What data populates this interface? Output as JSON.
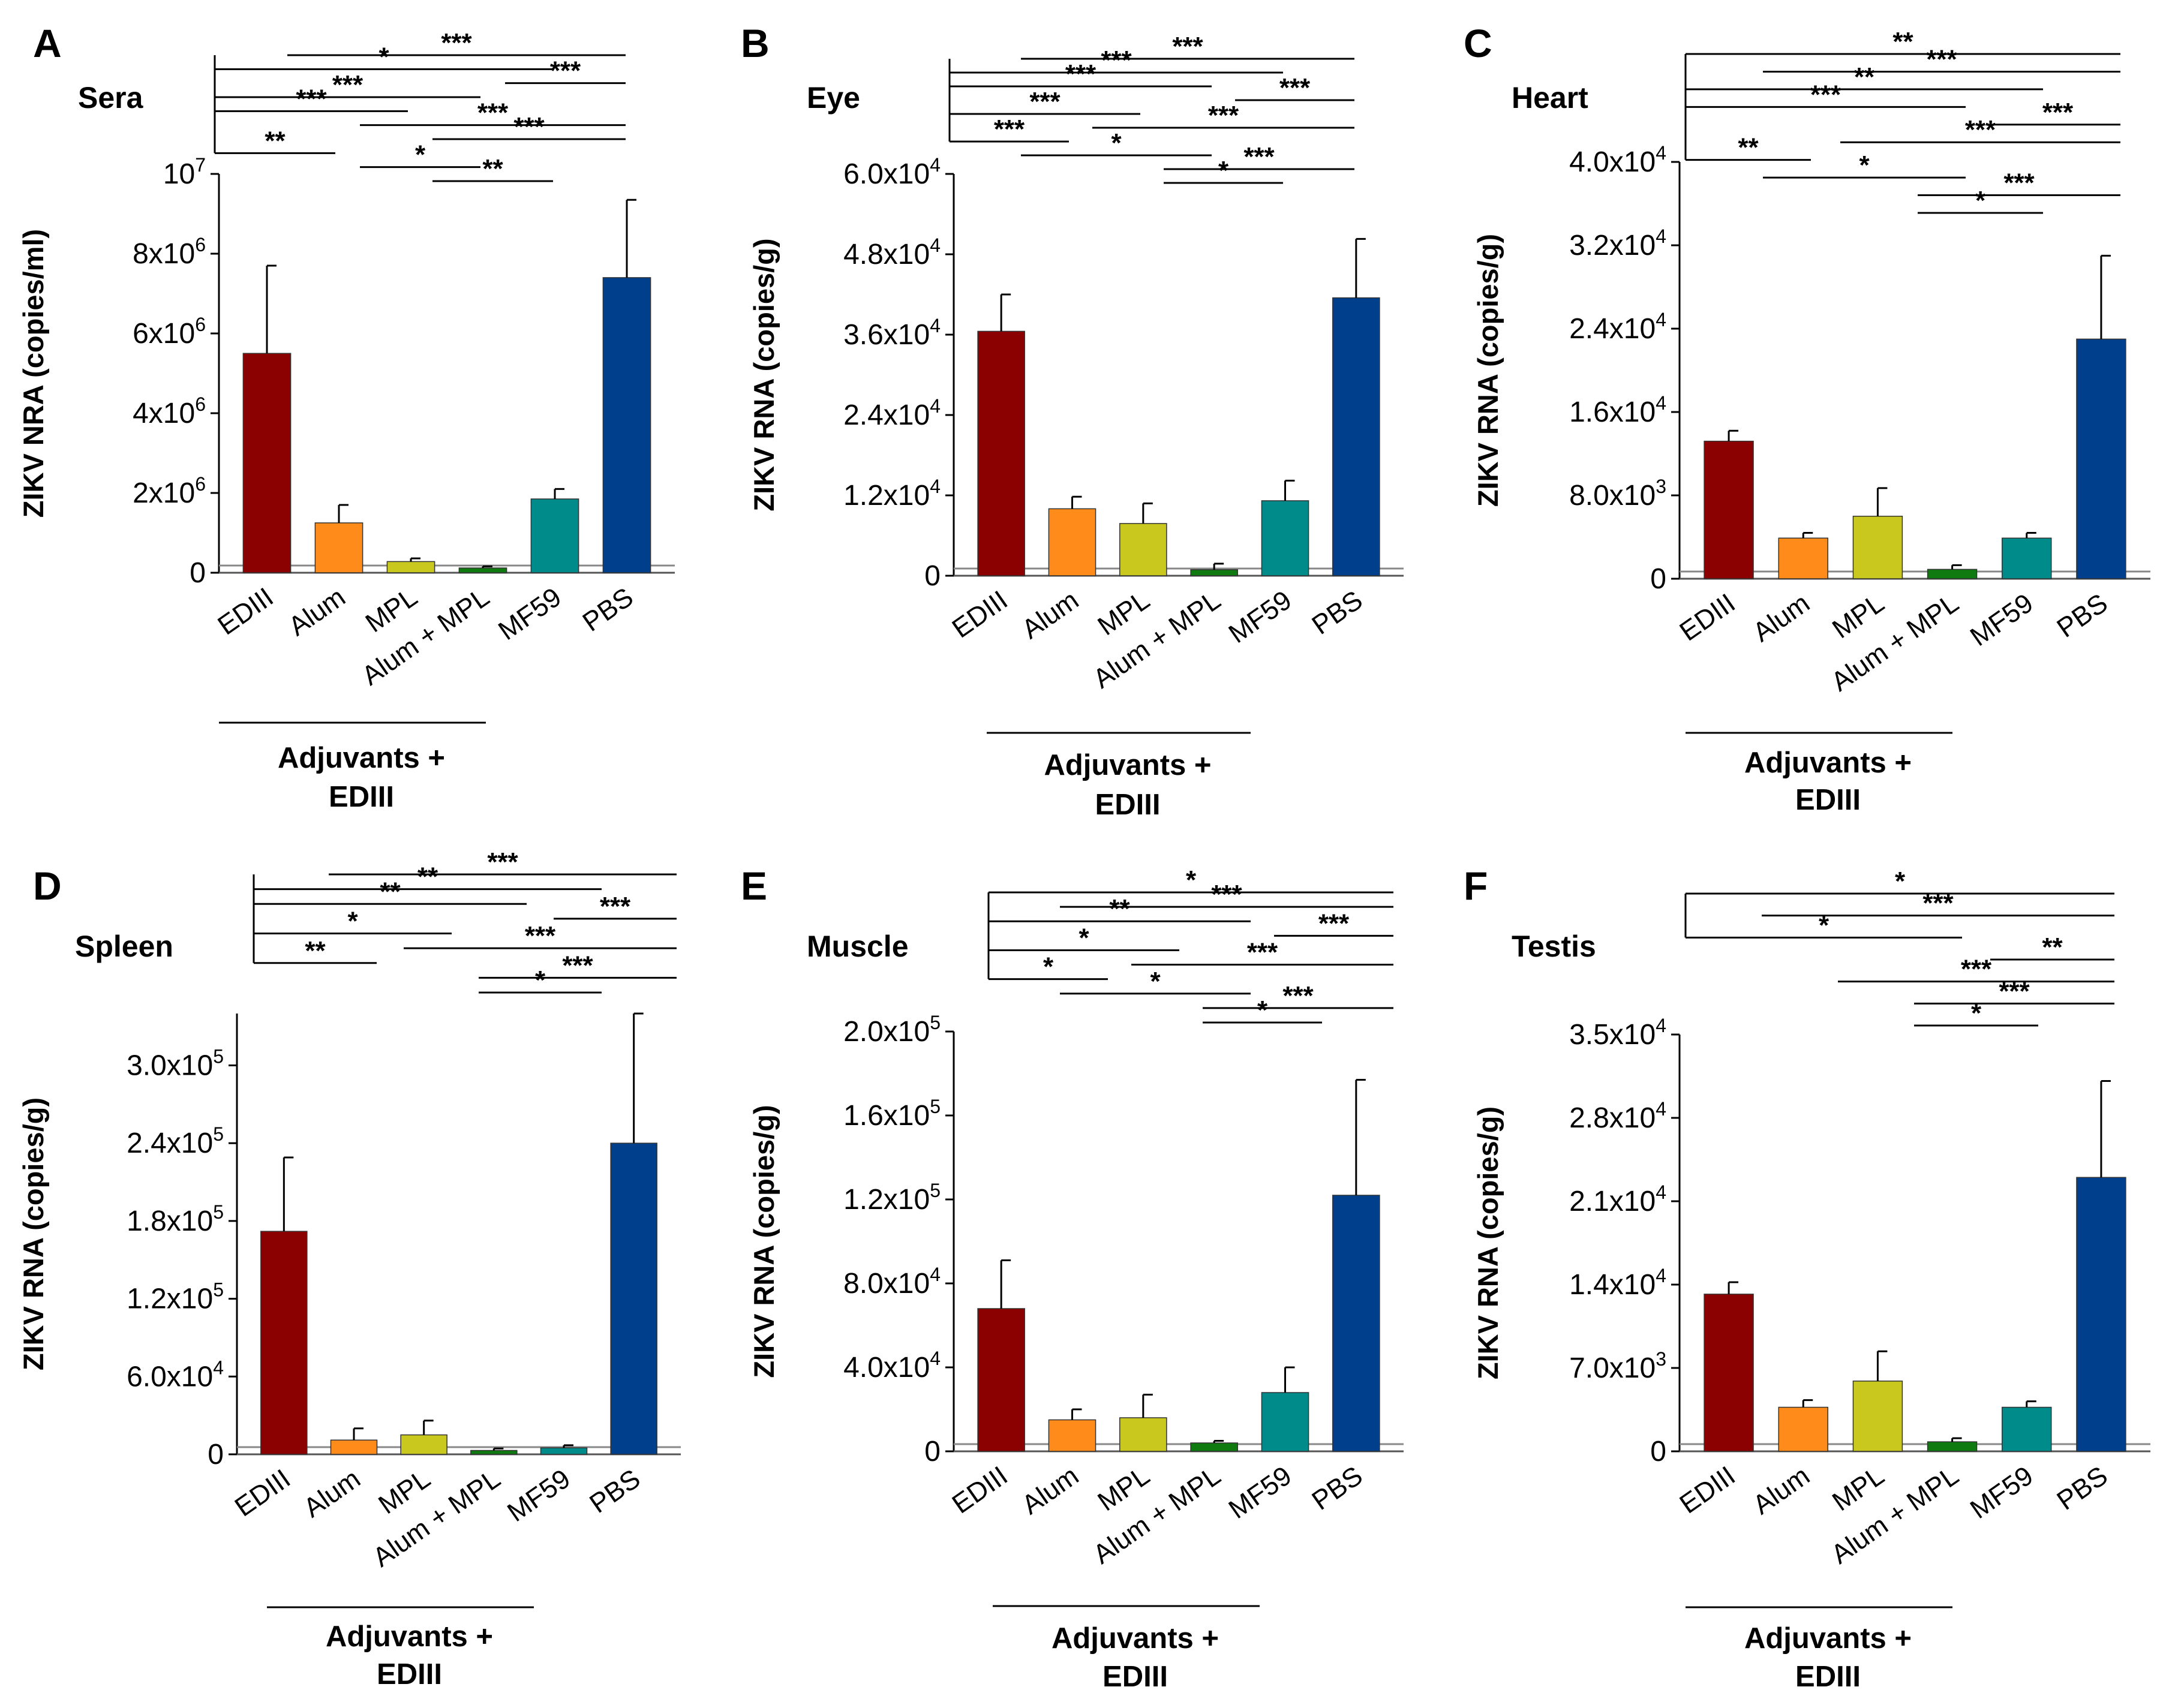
{
  "figure": {
    "colors": {
      "EDIII": "#8b0000",
      "Alum": "#ff8c1a",
      "MPL": "#c8c81e",
      "Alum + MPL": "#0f7a0f",
      "MF59": "#008b8b",
      "PBS": "#003f8c"
    }
  },
  "chart_data": [
    {
      "type": "bar",
      "panel": "A",
      "title": "Sera",
      "ylabel": "ZIKV NRA (copies/ml)",
      "categories": [
        "EDIII",
        "Alum",
        "MPL",
        "Alum + MPL",
        "MF59",
        "PBS"
      ],
      "values": [
        5500000,
        1250000,
        280000,
        120000,
        1850000,
        7400000
      ],
      "errors": [
        2200000,
        450000,
        80000,
        40000,
        250000,
        1950000
      ],
      "ylim": [
        0,
        10000000
      ],
      "ticks": [
        0,
        2000000,
        4000000,
        6000000,
        8000000,
        10000000
      ],
      "tick_labels": [
        {
          "base": "0",
          "exp": ""
        },
        {
          "base": "2x10",
          "exp": "6"
        },
        {
          "base": "4x10",
          "exp": "6"
        },
        {
          "base": "6x10",
          "exp": "6"
        },
        {
          "base": "8x10",
          "exp": "6"
        },
        {
          "base": "10",
          "exp": "7"
        }
      ],
      "group_label": [
        "Adjuvants +",
        "EDIII"
      ],
      "significance": [
        {
          "from": 1,
          "to": 5,
          "label": "***"
        },
        {
          "from": 0,
          "to": 4,
          "label": "*"
        },
        {
          "from": 4,
          "to": 5,
          "label": "***"
        },
        {
          "from": 0,
          "to": 3,
          "label": "***"
        },
        {
          "from": 0,
          "to": 2,
          "label": "***"
        },
        {
          "from": 2,
          "to": 5,
          "label": "***"
        },
        {
          "from": 3,
          "to": 5,
          "label": "***"
        },
        {
          "from": 0,
          "to": 1,
          "label": "**"
        },
        {
          "from": 2,
          "to": 3,
          "label": "*"
        },
        {
          "from": 3,
          "to": 4,
          "label": "**"
        }
      ]
    },
    {
      "type": "bar",
      "panel": "B",
      "title": "Eye",
      "ylabel": "ZIKV RNA (copies/g)",
      "categories": [
        "EDIII",
        "Alum",
        "MPL",
        "Alum + MPL",
        "MF59",
        "PBS"
      ],
      "values": [
        36500,
        10000,
        7800,
        900,
        11200,
        41500
      ],
      "errors": [
        5500,
        1800,
        3000,
        900,
        3000,
        8800
      ],
      "ylim": [
        0,
        60000
      ],
      "ticks": [
        0,
        12000,
        24000,
        36000,
        48000,
        60000
      ],
      "tick_labels": [
        {
          "base": "0",
          "exp": ""
        },
        {
          "base": "1.2x10",
          "exp": "4"
        },
        {
          "base": "2.4x10",
          "exp": "4"
        },
        {
          "base": "3.6x10",
          "exp": "4"
        },
        {
          "base": "4.8x10",
          "exp": "4"
        },
        {
          "base": "6.0x10",
          "exp": "4"
        }
      ],
      "group_label": [
        "Adjuvants +",
        "EDIII"
      ],
      "significance": [
        {
          "from": 1,
          "to": 5,
          "label": "***"
        },
        {
          "from": 0,
          "to": 4,
          "label": "***"
        },
        {
          "from": 0,
          "to": 3,
          "label": "***"
        },
        {
          "from": 4,
          "to": 5,
          "label": "***"
        },
        {
          "from": 0,
          "to": 2,
          "label": "***"
        },
        {
          "from": 2,
          "to": 5,
          "label": "***"
        },
        {
          "from": 0,
          "to": 1,
          "label": "***"
        },
        {
          "from": 1,
          "to": 3,
          "label": "*"
        },
        {
          "from": 3,
          "to": 5,
          "label": "***"
        },
        {
          "from": 3,
          "to": 4,
          "label": "*"
        }
      ]
    },
    {
      "type": "bar",
      "panel": "C",
      "title": "Heart",
      "ylabel": "ZIKV RNA (copies/g)",
      "categories": [
        "EDIII",
        "Alum",
        "MPL",
        "Alum + MPL",
        "MF59",
        "PBS"
      ],
      "values": [
        13200,
        3900,
        6000,
        900,
        3900,
        23000
      ],
      "errors": [
        1000,
        500,
        2700,
        400,
        500,
        8000
      ],
      "ylim": [
        0,
        40000
      ],
      "ticks": [
        0,
        8000,
        16000,
        24000,
        32000,
        40000
      ],
      "tick_labels": [
        {
          "base": "0",
          "exp": ""
        },
        {
          "base": "8.0x10",
          "exp": "3"
        },
        {
          "base": "1.6x10",
          "exp": "4"
        },
        {
          "base": "2.4x10",
          "exp": "4"
        },
        {
          "base": "3.2x10",
          "exp": "4"
        },
        {
          "base": "4.0x10",
          "exp": "4"
        }
      ],
      "group_label": [
        "Adjuvants +",
        "EDIII"
      ],
      "significance": [
        {
          "from": 0,
          "to": 5,
          "label": "**"
        },
        {
          "from": 1,
          "to": 5,
          "label": "***"
        },
        {
          "from": 0,
          "to": 4,
          "label": "**"
        },
        {
          "from": 0,
          "to": 3,
          "label": "***"
        },
        {
          "from": 4,
          "to": 5,
          "label": "***"
        },
        {
          "from": 2,
          "to": 5,
          "label": "***"
        },
        {
          "from": 0,
          "to": 1,
          "label": "**"
        },
        {
          "from": 1,
          "to": 3,
          "label": "*"
        },
        {
          "from": 3,
          "to": 5,
          "label": "***"
        },
        {
          "from": 3,
          "to": 4,
          "label": "*"
        }
      ]
    },
    {
      "type": "bar",
      "panel": "D",
      "title": "Spleen",
      "ylabel": "ZIKV RNA (copies/g)",
      "categories": [
        "EDIII",
        "Alum",
        "MPL",
        "Alum + MPL",
        "MF59",
        "PBS"
      ],
      "values": [
        172000,
        11000,
        15000,
        3000,
        5000,
        240000
      ],
      "errors": [
        57000,
        9000,
        11000,
        1500,
        2000,
        100000
      ],
      "ylim": [
        0,
        340000
      ],
      "ticks": [
        0,
        60000,
        120000,
        180000,
        240000,
        300000
      ],
      "tick_labels": [
        {
          "base": "0",
          "exp": ""
        },
        {
          "base": "6.0x10",
          "exp": "4"
        },
        {
          "base": "1.2x10",
          "exp": "5"
        },
        {
          "base": "1.8x10",
          "exp": "5"
        },
        {
          "base": "2.4x10",
          "exp": "5"
        },
        {
          "base": "3.0x10",
          "exp": "5"
        }
      ],
      "group_label": [
        "Adjuvants +",
        "EDIII"
      ],
      "significance": [
        {
          "from": 1,
          "to": 5,
          "label": "***"
        },
        {
          "from": 0,
          "to": 4,
          "label": "**"
        },
        {
          "from": 0,
          "to": 3,
          "label": "**"
        },
        {
          "from": 4,
          "to": 5,
          "label": "***"
        },
        {
          "from": 0,
          "to": 2,
          "label": "*"
        },
        {
          "from": 2,
          "to": 5,
          "label": "***"
        },
        {
          "from": 0,
          "to": 1,
          "label": "**"
        },
        {
          "from": 3,
          "to": 5,
          "label": "***"
        },
        {
          "from": 3,
          "to": 4,
          "label": "*"
        }
      ]
    },
    {
      "type": "bar",
      "panel": "E",
      "title": "Muscle",
      "ylabel": "ZIKV RNA (copies/g)",
      "categories": [
        "EDIII",
        "Alum",
        "MPL",
        "Alum + MPL",
        "MF59",
        "PBS"
      ],
      "values": [
        68000,
        15000,
        16000,
        4000,
        28000,
        122000
      ],
      "errors": [
        23000,
        5000,
        11000,
        1000,
        12000,
        55000
      ],
      "ylim": [
        0,
        200000
      ],
      "ticks": [
        0,
        40000,
        80000,
        120000,
        160000,
        200000
      ],
      "tick_labels": [
        {
          "base": "0",
          "exp": ""
        },
        {
          "base": "4.0x10",
          "exp": "4"
        },
        {
          "base": "8.0x10",
          "exp": "4"
        },
        {
          "base": "1.2x10",
          "exp": "5"
        },
        {
          "base": "1.6x10",
          "exp": "5"
        },
        {
          "base": "2.0x10",
          "exp": "5"
        }
      ],
      "group_label": [
        "Adjuvants +",
        "EDIII"
      ],
      "significance": [
        {
          "from": 0,
          "to": 5,
          "label": "*"
        },
        {
          "from": 1,
          "to": 5,
          "label": "***"
        },
        {
          "from": 0,
          "to": 3,
          "label": "**"
        },
        {
          "from": 4,
          "to": 5,
          "label": "***"
        },
        {
          "from": 0,
          "to": 2,
          "label": "*"
        },
        {
          "from": 2,
          "to": 5,
          "label": "***"
        },
        {
          "from": 0,
          "to": 1,
          "label": "*"
        },
        {
          "from": 1,
          "to": 3,
          "label": "*"
        },
        {
          "from": 3,
          "to": 5,
          "label": "***"
        },
        {
          "from": 3,
          "to": 4,
          "label": "*"
        }
      ]
    },
    {
      "type": "bar",
      "panel": "F",
      "title": "Testis",
      "ylabel": "ZIKV RNA (copies/g)",
      "categories": [
        "EDIII",
        "Alum",
        "MPL",
        "Alum + MPL",
        "MF59",
        "PBS"
      ],
      "values": [
        13200,
        3700,
        5900,
        800,
        3700,
        23000
      ],
      "errors": [
        1000,
        600,
        2500,
        300,
        500,
        8100
      ],
      "ylim": [
        0,
        35000
      ],
      "ticks": [
        0,
        7000,
        14000,
        21000,
        28000,
        35000
      ],
      "tick_labels": [
        {
          "base": "0",
          "exp": ""
        },
        {
          "base": "7.0x10",
          "exp": "3"
        },
        {
          "base": "1.4x10",
          "exp": "4"
        },
        {
          "base": "2.1x10",
          "exp": "4"
        },
        {
          "base": "2.8x10",
          "exp": "4"
        },
        {
          "base": "3.5x10",
          "exp": "4"
        }
      ],
      "group_label": [
        "Adjuvants +",
        "EDIII"
      ],
      "significance": [
        {
          "from": 0,
          "to": 5,
          "label": "*"
        },
        {
          "from": 1,
          "to": 5,
          "label": "***"
        },
        {
          "from": 0,
          "to": 3,
          "label": "*"
        },
        {
          "from": 4,
          "to": 5,
          "label": "**"
        },
        {
          "from": 2,
          "to": 5,
          "label": "***"
        },
        {
          "from": 3,
          "to": 5,
          "label": "***"
        },
        {
          "from": 3,
          "to": 4,
          "label": "*"
        }
      ]
    }
  ]
}
